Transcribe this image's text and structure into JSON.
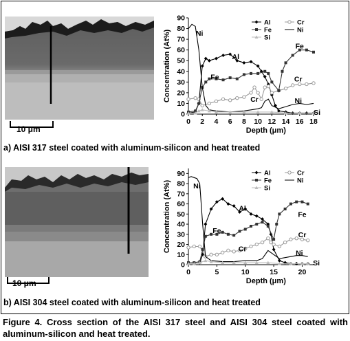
{
  "panel_a": {
    "scale_label": "10 μm",
    "caption": "a) AISI 317 steel coated with aluminum-silicon and heat treated"
  },
  "panel_b": {
    "scale_label": "10 μm",
    "caption": "b) AISI 304 steel coated with aluminum-silicon and heat treated"
  },
  "figure_caption": "Figure 4. Cross section of the AISI 317 steel and AISI 304 steel coated with aluminum-silicon and heat treated.",
  "chart_data": [
    {
      "type": "line",
      "xlabel": "Depth (μm)",
      "ylabel": "Concentration (At%)",
      "xlim": [
        0,
        18
      ],
      "ylim": [
        0,
        90
      ],
      "xticks": [
        0,
        2,
        4,
        6,
        8,
        10,
        12,
        14,
        16,
        18
      ],
      "yticks": [
        0,
        10,
        20,
        30,
        40,
        50,
        60,
        70,
        80,
        90
      ],
      "legend": [
        "Al",
        "Cr",
        "Fe",
        "Ni",
        "Si"
      ],
      "legend_position": "top-right",
      "annotations": [
        {
          "text": "Ni",
          "x": 1.6,
          "y": 76
        },
        {
          "text": "Al",
          "x": 6.8,
          "y": 54
        },
        {
          "text": "Fe",
          "x": 3.8,
          "y": 35
        },
        {
          "text": "Fe",
          "x": 16.0,
          "y": 64
        },
        {
          "text": "Cr",
          "x": 15.8,
          "y": 33
        },
        {
          "text": "Cr",
          "x": 9.5,
          "y": 14
        },
        {
          "text": "Ni",
          "x": 15.8,
          "y": 13
        },
        {
          "text": "Si",
          "x": 18.5,
          "y": 2
        }
      ],
      "series": [
        {
          "name": "Al",
          "color": "#000000",
          "marker": "diamond",
          "x": [
            0,
            1,
            1.5,
            2,
            2.5,
            3,
            4,
            5,
            6,
            7,
            8,
            9,
            10,
            10.5,
            11,
            11.5,
            12,
            12.5,
            13,
            14,
            15,
            16,
            17,
            18
          ],
          "y": [
            1,
            2,
            10,
            45,
            52,
            50,
            52,
            55,
            56,
            50,
            48,
            49,
            45,
            40,
            35,
            28,
            18,
            8,
            3,
            2,
            1,
            1,
            1,
            1
          ]
        },
        {
          "name": "Cr",
          "color": "#999999",
          "marker": "circle",
          "x": [
            0,
            1,
            1.5,
            2,
            3,
            4,
            5,
            6,
            7,
            8,
            9,
            9.5,
            10,
            10.5,
            11,
            11.5,
            12,
            13,
            14,
            15,
            16,
            17,
            18
          ],
          "y": [
            14,
            15,
            14,
            8,
            10,
            12,
            14,
            13,
            15,
            16,
            20,
            25,
            20,
            14,
            25,
            26,
            20,
            22,
            24,
            27,
            28,
            28,
            29
          ]
        },
        {
          "name": "Fe",
          "color": "#333333",
          "marker": "square",
          "x": [
            0,
            1,
            1.5,
            2,
            2.5,
            3,
            4,
            5,
            6,
            7,
            8,
            9,
            10,
            11,
            11.5,
            12,
            13,
            13.5,
            14,
            15,
            16,
            17,
            18
          ],
          "y": [
            2,
            3,
            10,
            25,
            30,
            33,
            33,
            32,
            34,
            33,
            37,
            38,
            38,
            40,
            38,
            30,
            22,
            40,
            48,
            55,
            60,
            60,
            58
          ]
        },
        {
          "name": "Ni",
          "color": "#000000",
          "marker": "none",
          "x": [
            0,
            0.5,
            1,
            1.5,
            2,
            2.5,
            3,
            4,
            6,
            8,
            9,
            10,
            10.5,
            11,
            11.5,
            12,
            13,
            14,
            15,
            16,
            17,
            18
          ],
          "y": [
            80,
            84,
            82,
            60,
            25,
            8,
            4,
            3,
            2,
            3,
            4,
            5,
            6,
            12,
            14,
            8,
            5,
            7,
            9,
            10,
            9,
            10
          ]
        },
        {
          "name": "Si",
          "color": "#bbbbbb",
          "marker": "triangle",
          "x": [
            0,
            1,
            1.5,
            2,
            3,
            4,
            6,
            8,
            10,
            12,
            14,
            16,
            18
          ],
          "y": [
            1,
            1,
            3,
            4,
            3,
            2,
            2,
            2,
            2,
            2,
            1,
            1,
            1
          ]
        }
      ]
    },
    {
      "type": "line",
      "xlabel": "Depth (μm)",
      "ylabel": "Concentration (At%)",
      "xlim": [
        0,
        22
      ],
      "ylim": [
        0,
        95
      ],
      "xticks": [
        0,
        5,
        10,
        15,
        20
      ],
      "yticks": [
        0,
        10,
        20,
        30,
        40,
        50,
        60,
        70,
        80,
        90
      ],
      "legend": [
        "Al",
        "Cr",
        "Fe",
        "Ni",
        "Si"
      ],
      "legend_position": "top-right",
      "annotations": [
        {
          "text": "Ni",
          "x": 1.5,
          "y": 78
        },
        {
          "text": "Al",
          "x": 9.5,
          "y": 56
        },
        {
          "text": "Fe",
          "x": 5.0,
          "y": 34
        },
        {
          "text": "Fe",
          "x": 20.0,
          "y": 50
        },
        {
          "text": "Cr",
          "x": 20.0,
          "y": 30
        },
        {
          "text": "Cr",
          "x": 9.5,
          "y": 16
        },
        {
          "text": "Ni",
          "x": 19.5,
          "y": 12
        },
        {
          "text": "Si",
          "x": 22.5,
          "y": 2
        }
      ],
      "series": [
        {
          "name": "Al",
          "color": "#000000",
          "marker": "diamond",
          "x": [
            0,
            1,
            2,
            2.5,
            3,
            4,
            5,
            6,
            7,
            8,
            9,
            10,
            11,
            12,
            13,
            14,
            14.5,
            15,
            16,
            17,
            18,
            19,
            20,
            21
          ],
          "y": [
            1,
            1,
            2,
            10,
            40,
            55,
            62,
            65,
            60,
            58,
            52,
            55,
            50,
            48,
            45,
            40,
            30,
            15,
            4,
            2,
            1,
            1,
            1,
            1
          ]
        },
        {
          "name": "Cr",
          "color": "#999999",
          "marker": "circle",
          "x": [
            0,
            1,
            2,
            3,
            4,
            5,
            6,
            7,
            8,
            9,
            10,
            11,
            12,
            13,
            14,
            14.5,
            15,
            16,
            17,
            18,
            19,
            20,
            21
          ],
          "y": [
            17,
            18,
            18,
            8,
            10,
            10,
            12,
            14,
            13,
            14,
            16,
            18,
            20,
            22,
            26,
            22,
            20,
            18,
            22,
            25,
            26,
            25,
            24
          ]
        },
        {
          "name": "Fe",
          "color": "#333333",
          "marker": "square",
          "x": [
            0,
            1,
            2,
            2.5,
            3,
            4,
            5,
            6,
            7,
            8,
            9,
            10,
            11,
            12,
            13,
            14,
            15,
            15.5,
            16,
            17,
            18,
            19,
            20,
            21
          ],
          "y": [
            2,
            2,
            3,
            15,
            28,
            30,
            30,
            32,
            30,
            29,
            33,
            35,
            38,
            40,
            42,
            38,
            25,
            40,
            50,
            55,
            60,
            62,
            62,
            60
          ]
        },
        {
          "name": "Ni",
          "color": "#000000",
          "marker": "none",
          "x": [
            0,
            0.5,
            1,
            1.5,
            2,
            2.5,
            3,
            4,
            6,
            8,
            10,
            12,
            13,
            14,
            15,
            16,
            17,
            18,
            19,
            20,
            21
          ],
          "y": [
            86,
            87,
            86,
            85,
            80,
            40,
            8,
            4,
            3,
            3,
            4,
            4,
            6,
            14,
            10,
            6,
            7,
            8,
            9,
            9,
            8
          ]
        },
        {
          "name": "Si",
          "color": "#bbbbbb",
          "marker": "triangle",
          "x": [
            0,
            1,
            2,
            3,
            4,
            6,
            8,
            10,
            12,
            14,
            16,
            18,
            20,
            21
          ],
          "y": [
            1,
            1,
            2,
            4,
            3,
            2,
            2,
            2,
            2,
            2,
            1,
            1,
            1,
            1
          ]
        }
      ]
    }
  ]
}
